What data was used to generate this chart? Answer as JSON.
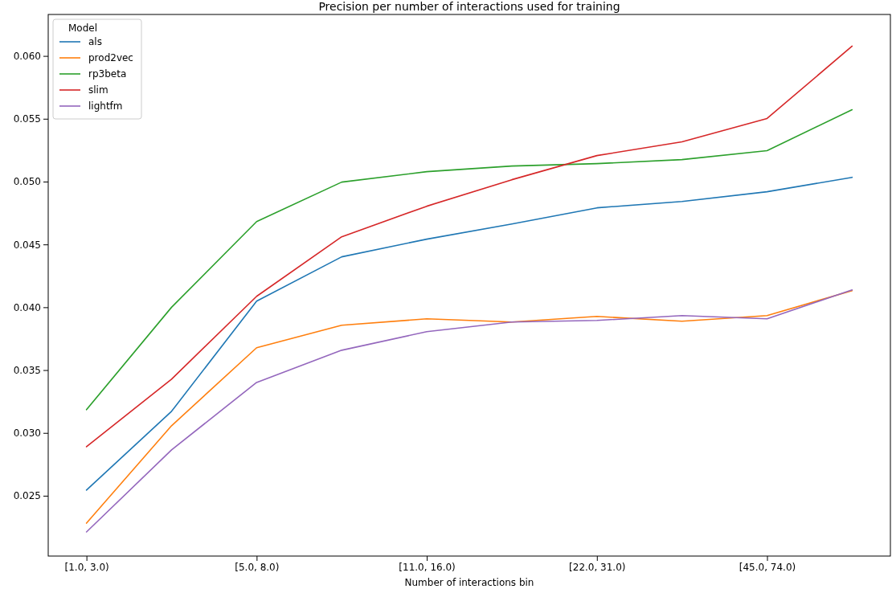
{
  "chart_data": {
    "type": "line",
    "title": "Precision per number of interactions used for training",
    "xlabel": "Number of interactions bin",
    "legend_title": "Model",
    "legend": "top left",
    "grid": false,
    "categories": [
      "[1.0, 3.0)",
      null,
      "[5.0, 8.0)",
      null,
      "[11.0, 16.0)",
      null,
      "[22.0, 31.0)",
      null,
      "[45.0, 74.0)",
      null
    ],
    "ylim": [
      0.0202,
      0.0633
    ],
    "yticks": [
      {
        "value": 0.025,
        "label": "0.025"
      },
      {
        "value": 0.03,
        "label": "0.030"
      },
      {
        "value": 0.035,
        "label": "0.035"
      },
      {
        "value": 0.04,
        "label": "0.040"
      },
      {
        "value": 0.045,
        "label": "0.045"
      },
      {
        "value": 0.05,
        "label": "0.050"
      },
      {
        "value": 0.055,
        "label": "0.055"
      },
      {
        "value": 0.06,
        "label": "0.060"
      }
    ],
    "series": [
      {
        "name": "als",
        "color": "#1f77b4",
        "values": [
          0.02545,
          0.03172,
          0.04049,
          0.04401,
          0.04542,
          0.04663,
          0.04791,
          0.04842,
          0.04919,
          0.05034
        ]
      },
      {
        "name": "prod2vec",
        "color": "#ff7f0e",
        "values": [
          0.02282,
          0.03057,
          0.03678,
          0.03857,
          0.03908,
          0.03882,
          0.03927,
          0.03889,
          0.03934,
          0.04132
        ]
      },
      {
        "name": "rp3beta",
        "color": "#2ca02c",
        "values": [
          0.03185,
          0.04,
          0.04682,
          0.04996,
          0.05079,
          0.05124,
          0.05143,
          0.05175,
          0.05246,
          0.05572
        ]
      },
      {
        "name": "slim",
        "color": "#d62728",
        "values": [
          0.0289,
          0.03428,
          0.04087,
          0.04561,
          0.04804,
          0.05015,
          0.05207,
          0.05316,
          0.05502,
          0.06078
        ]
      },
      {
        "name": "lightfm",
        "color": "#9467bd",
        "values": [
          0.02212,
          0.02865,
          0.03402,
          0.03658,
          0.03806,
          0.03882,
          0.03895,
          0.03934,
          0.03908,
          0.04138
        ]
      }
    ]
  }
}
